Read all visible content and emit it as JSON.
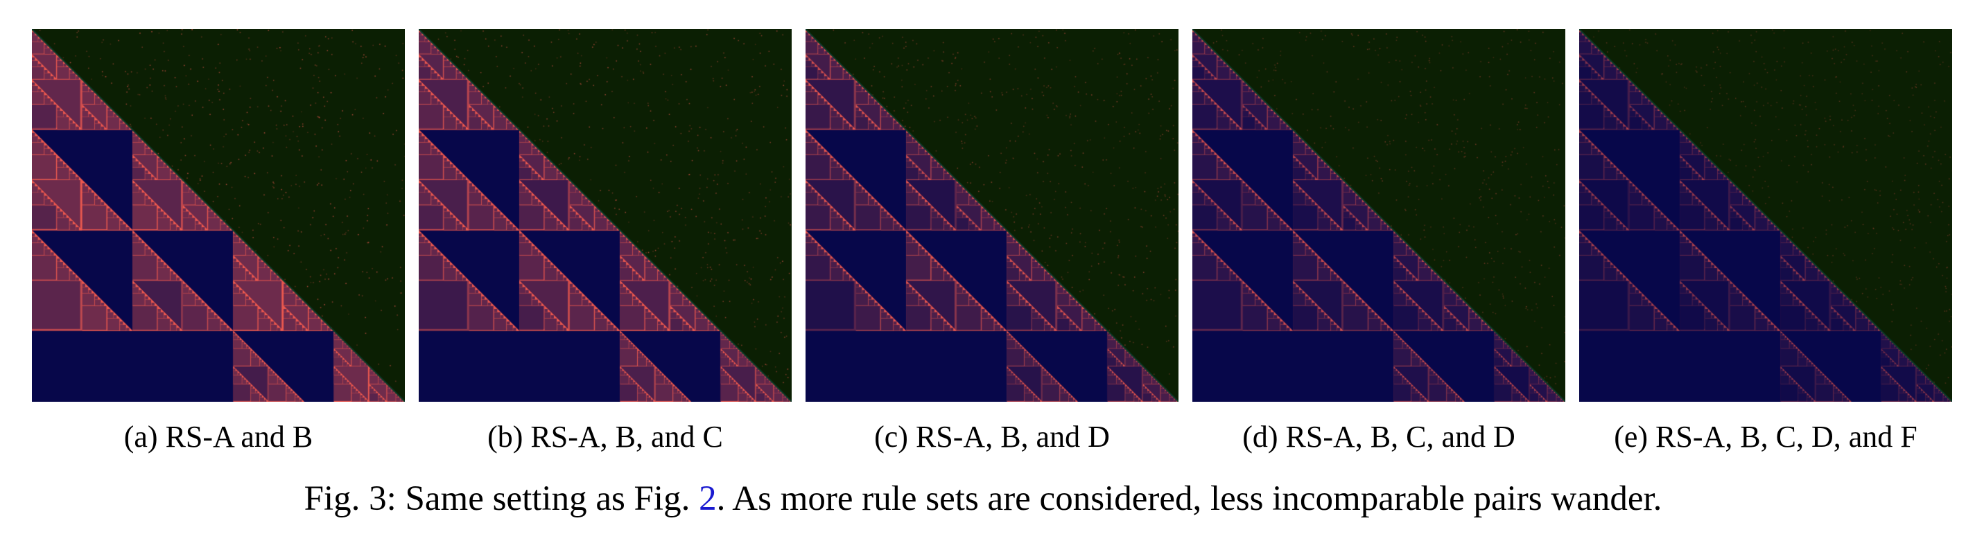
{
  "figure": {
    "label": "Fig. 3:",
    "caption_before": "Same setting as Fig.",
    "caption_ref": "2",
    "caption_after": ". As more rule sets are considered, less incomparable pairs wander."
  },
  "panels": [
    {
      "caption": "(a) RS-A and B",
      "fill_level": 1.0
    },
    {
      "caption": "(b) RS-A, B, and C",
      "fill_level": 0.85
    },
    {
      "caption": "(c) RS-A, B, and D",
      "fill_level": 0.62
    },
    {
      "caption": "(d) RS-A, B, C, and D",
      "fill_level": 0.42
    },
    {
      "caption": "(e) RS-A, B, C, D, and F",
      "fill_level": 0.28
    }
  ],
  "colors": {
    "upper_background": "#0b1f03",
    "lower_background": "#07074a",
    "incomparable": "#ef5a4f",
    "diagonal": "#0a3a2a"
  }
}
